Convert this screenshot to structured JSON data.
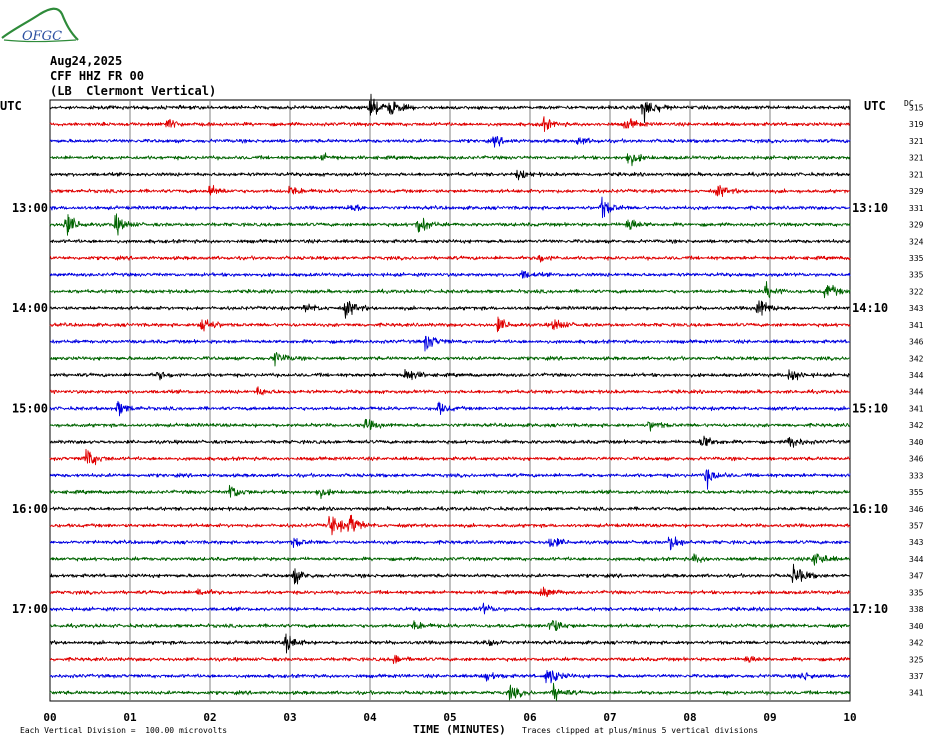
{
  "logo": {
    "text": "OFGC"
  },
  "header": {
    "date": "Aug24,2025",
    "station": "CFF HHZ FR 00",
    "location": "(LB  Clermont Vertical)"
  },
  "chart_data": {
    "type": "line",
    "subtype": "helicorder",
    "xlabel": "TIME (MINUTES)",
    "x_ticks": [
      "00",
      "01",
      "02",
      "03",
      "04",
      "05",
      "06",
      "07",
      "08",
      "09",
      "10"
    ],
    "xlim": [
      0,
      10
    ],
    "left_axis_title": "UTC",
    "right_axis_title": "UTC",
    "dc_label": "DC",
    "trace_colors": [
      "#000000",
      "#e00000",
      "#0000e0",
      "#006400"
    ],
    "left_time_labels": [
      {
        "row": 6,
        "text": "13:00"
      },
      {
        "row": 12,
        "text": "14:00"
      },
      {
        "row": 18,
        "text": "15:00"
      },
      {
        "row": 24,
        "text": "16:00"
      },
      {
        "row": 30,
        "text": "17:00"
      }
    ],
    "right_time_labels": [
      {
        "row": 6,
        "text": "13:10"
      },
      {
        "row": 12,
        "text": "14:10"
      },
      {
        "row": 18,
        "text": "15:10"
      },
      {
        "row": 24,
        "text": "16:10"
      },
      {
        "row": 30,
        "text": "17:10"
      }
    ],
    "dc_offsets": [
      "315",
      "319",
      "321",
      "321",
      "321",
      "329",
      "331",
      "329",
      "324",
      "335",
      "335",
      "322",
      "343",
      "341",
      "346",
      "342",
      "344",
      "344",
      "341",
      "342",
      "340",
      "346",
      "333",
      "355",
      "346",
      "357",
      "343",
      "344",
      "347",
      "335",
      "338",
      "340",
      "342",
      "325",
      "337",
      "341"
    ],
    "events": [
      {
        "row": 0,
        "minute": 4.0,
        "amp": 2.2
      },
      {
        "row": 0,
        "minute": 4.25,
        "amp": 1.6
      },
      {
        "row": 0,
        "minute": 7.42,
        "amp": 3.0
      },
      {
        "row": 1,
        "minute": 1.45,
        "amp": 1.2
      },
      {
        "row": 1,
        "minute": 6.15,
        "amp": 1.4
      },
      {
        "row": 1,
        "minute": 7.2,
        "amp": 1.2
      },
      {
        "row": 2,
        "minute": 5.55,
        "amp": 0.9
      },
      {
        "row": 2,
        "minute": 6.6,
        "amp": 0.8
      },
      {
        "row": 3,
        "minute": 7.22,
        "amp": 1.6
      },
      {
        "row": 3,
        "minute": 3.4,
        "amp": 0.7
      },
      {
        "row": 4,
        "minute": 5.85,
        "amp": 0.9
      },
      {
        "row": 5,
        "minute": 2.0,
        "amp": 1.1
      },
      {
        "row": 5,
        "minute": 3.0,
        "amp": 1.0
      },
      {
        "row": 5,
        "minute": 8.35,
        "amp": 1.2
      },
      {
        "row": 6,
        "minute": 6.9,
        "amp": 2.0
      },
      {
        "row": 6,
        "minute": 3.75,
        "amp": 0.8
      },
      {
        "row": 7,
        "minute": 0.2,
        "amp": 2.4
      },
      {
        "row": 7,
        "minute": 0.82,
        "amp": 1.8
      },
      {
        "row": 7,
        "minute": 4.6,
        "amp": 2.0
      },
      {
        "row": 7,
        "minute": 7.22,
        "amp": 1.5
      },
      {
        "row": 9,
        "minute": 6.1,
        "amp": 0.8
      },
      {
        "row": 10,
        "minute": 5.9,
        "amp": 0.8
      },
      {
        "row": 11,
        "minute": 8.95,
        "amp": 1.6
      },
      {
        "row": 11,
        "minute": 9.7,
        "amp": 1.8
      },
      {
        "row": 12,
        "minute": 3.7,
        "amp": 1.8
      },
      {
        "row": 12,
        "minute": 8.85,
        "amp": 2.2
      },
      {
        "row": 12,
        "minute": 3.2,
        "amp": 0.9
      },
      {
        "row": 13,
        "minute": 1.9,
        "amp": 2.0
      },
      {
        "row": 13,
        "minute": 5.6,
        "amp": 1.4
      },
      {
        "row": 13,
        "minute": 6.3,
        "amp": 1.3
      },
      {
        "row": 14,
        "minute": 4.7,
        "amp": 1.8
      },
      {
        "row": 15,
        "minute": 2.8,
        "amp": 1.6
      },
      {
        "row": 16,
        "minute": 4.45,
        "amp": 1.5
      },
      {
        "row": 16,
        "minute": 9.25,
        "amp": 1.4
      },
      {
        "row": 16,
        "minute": 1.35,
        "amp": 0.8
      },
      {
        "row": 17,
        "minute": 2.6,
        "amp": 0.8
      },
      {
        "row": 18,
        "minute": 0.85,
        "amp": 1.4
      },
      {
        "row": 18,
        "minute": 4.85,
        "amp": 1.2
      },
      {
        "row": 19,
        "minute": 3.95,
        "amp": 1.1
      },
      {
        "row": 19,
        "minute": 7.5,
        "amp": 1.0
      },
      {
        "row": 20,
        "minute": 8.15,
        "amp": 1.6
      },
      {
        "row": 20,
        "minute": 9.25,
        "amp": 1.4
      },
      {
        "row": 21,
        "minute": 0.45,
        "amp": 2.2
      },
      {
        "row": 22,
        "minute": 8.2,
        "amp": 2.0
      },
      {
        "row": 23,
        "minute": 2.25,
        "amp": 1.8
      },
      {
        "row": 23,
        "minute": 3.35,
        "amp": 1.0
      },
      {
        "row": 25,
        "minute": 3.5,
        "amp": 2.6
      },
      {
        "row": 25,
        "minute": 3.75,
        "amp": 2.0
      },
      {
        "row": 26,
        "minute": 7.75,
        "amp": 1.6
      },
      {
        "row": 26,
        "minute": 6.25,
        "amp": 1.3
      },
      {
        "row": 26,
        "minute": 3.05,
        "amp": 0.9
      },
      {
        "row": 27,
        "minute": 9.55,
        "amp": 2.0
      },
      {
        "row": 27,
        "minute": 8.05,
        "amp": 0.8
      },
      {
        "row": 28,
        "minute": 3.05,
        "amp": 1.6
      },
      {
        "row": 28,
        "minute": 9.3,
        "amp": 2.4
      },
      {
        "row": 29,
        "minute": 6.15,
        "amp": 1.4
      },
      {
        "row": 29,
        "minute": 1.85,
        "amp": 0.8
      },
      {
        "row": 30,
        "minute": 5.4,
        "amp": 1.0
      },
      {
        "row": 31,
        "minute": 6.25,
        "amp": 2.0
      },
      {
        "row": 31,
        "minute": 4.55,
        "amp": 0.9
      },
      {
        "row": 32,
        "minute": 2.95,
        "amp": 1.8
      },
      {
        "row": 32,
        "minute": 5.45,
        "amp": 1.2
      },
      {
        "row": 33,
        "minute": 4.3,
        "amp": 0.9
      },
      {
        "row": 33,
        "minute": 8.7,
        "amp": 0.8
      },
      {
        "row": 34,
        "minute": 6.22,
        "amp": 2.2
      },
      {
        "row": 34,
        "minute": 5.45,
        "amp": 1.0
      },
      {
        "row": 34,
        "minute": 9.4,
        "amp": 0.9
      },
      {
        "row": 35,
        "minute": 5.75,
        "amp": 1.4
      },
      {
        "row": 35,
        "minute": 6.3,
        "amp": 1.6
      }
    ],
    "footer_scale": "Each Vertical Division =  100.00 microvolts",
    "footer_clip": "Traces clipped at plus/minus 5 vertical divisions"
  }
}
